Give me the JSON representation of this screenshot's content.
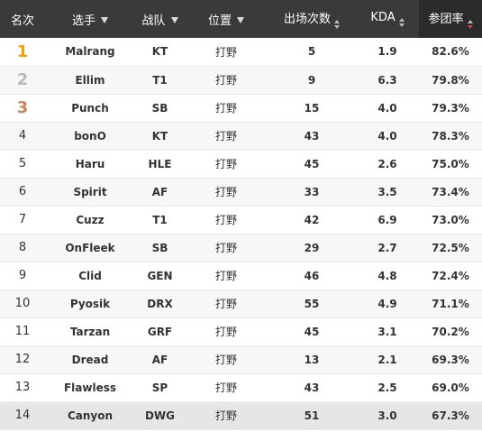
{
  "headers": {
    "rank": "名次",
    "player": "选手",
    "team": "战队",
    "position": "位置",
    "games": "出场次数",
    "kda": "KDA",
    "kp": "参团率"
  },
  "colors": {
    "header_bg": "#3a3a3a",
    "gold": "#f5a200",
    "silver": "#b8b8b8",
    "bronze": "#c8865a",
    "sort_active": "#e04040"
  },
  "sort": {
    "column": "kp",
    "direction": "desc"
  },
  "rows": [
    {
      "rank": "1",
      "player": "Malrang",
      "team": "KT",
      "position": "打野",
      "games": "5",
      "kda": "1.9",
      "kp": "82.6%"
    },
    {
      "rank": "2",
      "player": "Ellim",
      "team": "T1",
      "position": "打野",
      "games": "9",
      "kda": "6.3",
      "kp": "79.8%"
    },
    {
      "rank": "3",
      "player": "Punch",
      "team": "SB",
      "position": "打野",
      "games": "15",
      "kda": "4.0",
      "kp": "79.3%"
    },
    {
      "rank": "4",
      "player": "bonO",
      "team": "KT",
      "position": "打野",
      "games": "43",
      "kda": "4.0",
      "kp": "78.3%"
    },
    {
      "rank": "5",
      "player": "Haru",
      "team": "HLE",
      "position": "打野",
      "games": "45",
      "kda": "2.6",
      "kp": "75.0%"
    },
    {
      "rank": "6",
      "player": "Spirit",
      "team": "AF",
      "position": "打野",
      "games": "33",
      "kda": "3.5",
      "kp": "73.4%"
    },
    {
      "rank": "7",
      "player": "Cuzz",
      "team": "T1",
      "position": "打野",
      "games": "42",
      "kda": "6.9",
      "kp": "73.0%"
    },
    {
      "rank": "8",
      "player": "OnFleek",
      "team": "SB",
      "position": "打野",
      "games": "29",
      "kda": "2.7",
      "kp": "72.5%"
    },
    {
      "rank": "9",
      "player": "Clid",
      "team": "GEN",
      "position": "打野",
      "games": "46",
      "kda": "4.8",
      "kp": "72.4%"
    },
    {
      "rank": "10",
      "player": "Pyosik",
      "team": "DRX",
      "position": "打野",
      "games": "55",
      "kda": "4.9",
      "kp": "71.1%"
    },
    {
      "rank": "11",
      "player": "Tarzan",
      "team": "GRF",
      "position": "打野",
      "games": "45",
      "kda": "3.1",
      "kp": "70.2%"
    },
    {
      "rank": "12",
      "player": "Dread",
      "team": "AF",
      "position": "打野",
      "games": "13",
      "kda": "2.1",
      "kp": "69.3%"
    },
    {
      "rank": "13",
      "player": "Flawless",
      "team": "SP",
      "position": "打野",
      "games": "43",
      "kda": "2.5",
      "kp": "69.0%"
    },
    {
      "rank": "14",
      "player": "Canyon",
      "team": "DWG",
      "position": "打野",
      "games": "51",
      "kda": "3.0",
      "kp": "67.3%",
      "highlighted": true
    }
  ]
}
